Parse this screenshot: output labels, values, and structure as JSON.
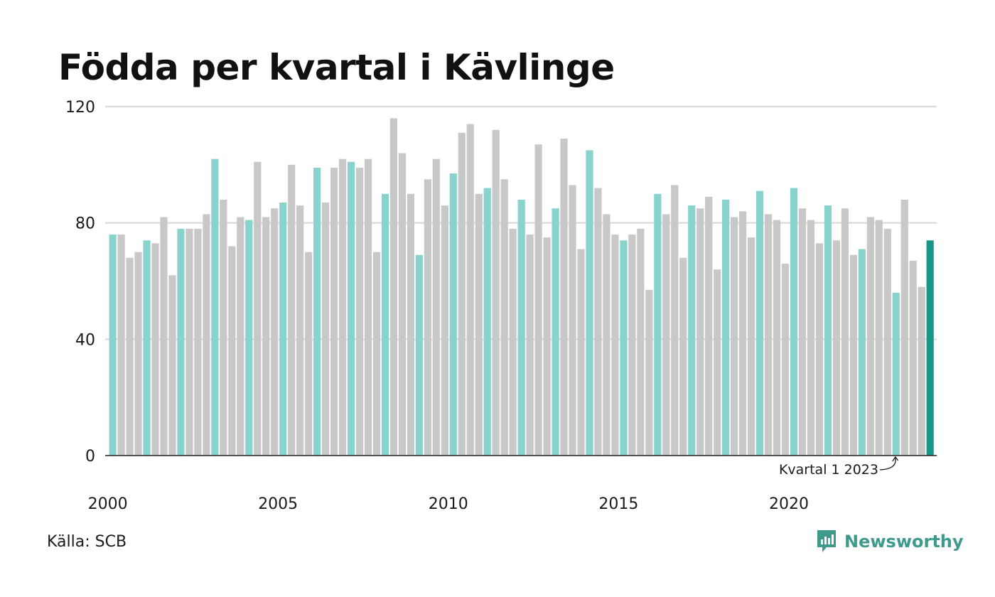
{
  "title": "Födda per kvartal i Kävlinge",
  "source": "Källa: SCB",
  "brand": "Newsworthy",
  "annotation": "Kvartal 1 2023",
  "colors": {
    "q1": "#88d4cc",
    "other": "#c8c8c8",
    "latest": "#1a9688",
    "grid": "#dddddd",
    "axis": "#222222",
    "brand": "#3f9a8c"
  },
  "chart_data": {
    "type": "bar",
    "title": "Födda per kvartal i Kävlinge",
    "xlabel": "",
    "ylabel": "",
    "ylim": [
      0,
      120
    ],
    "y_ticks": [
      0,
      40,
      80,
      120
    ],
    "x_tick_labels": [
      "2000",
      "2005",
      "2010",
      "2015",
      "2020"
    ],
    "grid": true,
    "start_year": 2000,
    "highlight": "Q1 bars teal, other quarters grey, latest bar dark teal",
    "values": [
      76,
      76,
      68,
      70,
      74,
      73,
      82,
      62,
      78,
      78,
      78,
      83,
      102,
      88,
      72,
      82,
      81,
      101,
      82,
      85,
      87,
      100,
      86,
      70,
      99,
      87,
      99,
      102,
      101,
      99,
      102,
      70,
      90,
      116,
      104,
      90,
      69,
      95,
      102,
      86,
      97,
      111,
      114,
      90,
      92,
      112,
      95,
      78,
      88,
      76,
      107,
      75,
      85,
      109,
      93,
      71,
      105,
      92,
      83,
      76,
      74,
      76,
      78,
      57,
      90,
      83,
      93,
      68,
      86,
      85,
      89,
      64,
      88,
      82,
      84,
      75,
      91,
      83,
      81,
      66,
      92,
      85,
      81,
      73,
      86,
      74,
      85,
      69,
      71,
      82,
      81,
      78,
      56,
      88,
      67,
      58,
      74
    ]
  }
}
